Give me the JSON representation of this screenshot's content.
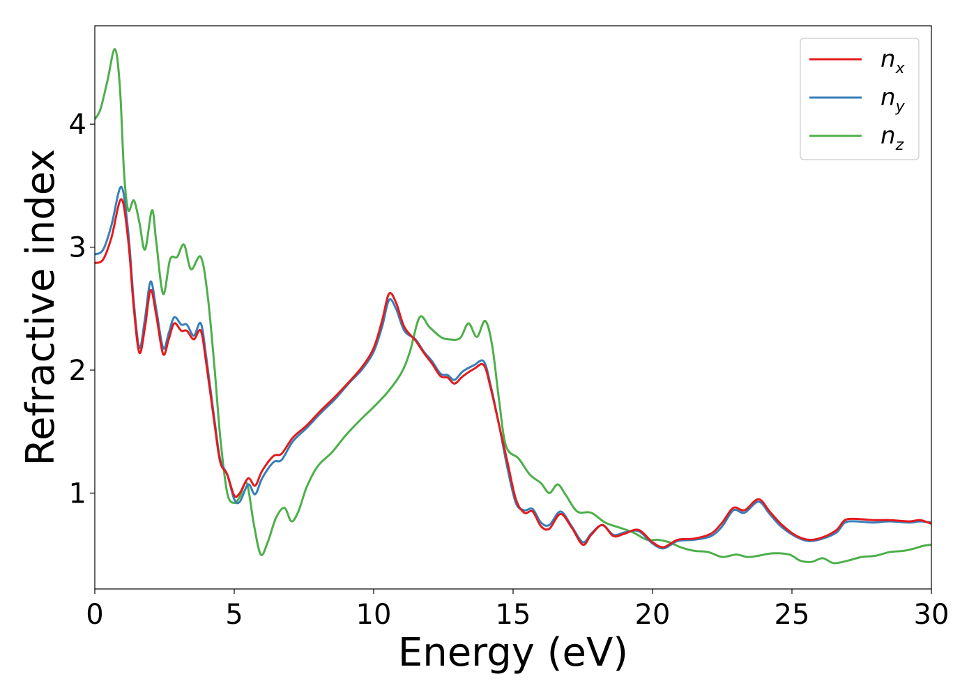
{
  "chart_data": {
    "type": "line",
    "xlabel": "Energy (eV)",
    "ylabel": "Refractive index",
    "xlim": [
      0,
      30
    ],
    "ylim": [
      0.22,
      4.8
    ],
    "x_ticks": [
      0,
      5,
      10,
      15,
      20,
      25,
      30
    ],
    "y_ticks": [
      1,
      2,
      3,
      4
    ],
    "legend_position": "top-right",
    "grid": false,
    "series": [
      {
        "name": "n_x",
        "label_main": "n",
        "label_sub": "x",
        "color": "#e41a1c",
        "points": [
          [
            0,
            2.87
          ],
          [
            0.3,
            2.9
          ],
          [
            0.6,
            3.08
          ],
          [
            0.95,
            3.39
          ],
          [
            1.2,
            3.05
          ],
          [
            1.4,
            2.5
          ],
          [
            1.6,
            2.14
          ],
          [
            1.8,
            2.35
          ],
          [
            2.0,
            2.65
          ],
          [
            2.2,
            2.45
          ],
          [
            2.45,
            2.13
          ],
          [
            2.65,
            2.25
          ],
          [
            2.85,
            2.38
          ],
          [
            3.1,
            2.32
          ],
          [
            3.3,
            2.32
          ],
          [
            3.55,
            2.25
          ],
          [
            3.8,
            2.32
          ],
          [
            4.0,
            2.05
          ],
          [
            4.3,
            1.55
          ],
          [
            4.5,
            1.25
          ],
          [
            4.75,
            1.15
          ],
          [
            5.0,
            0.98
          ],
          [
            5.2,
            1.0
          ],
          [
            5.5,
            1.12
          ],
          [
            5.75,
            1.06
          ],
          [
            6.0,
            1.18
          ],
          [
            6.4,
            1.3
          ],
          [
            6.7,
            1.32
          ],
          [
            7.1,
            1.45
          ],
          [
            7.6,
            1.55
          ],
          [
            8.1,
            1.67
          ],
          [
            8.6,
            1.78
          ],
          [
            9.1,
            1.9
          ],
          [
            9.6,
            2.03
          ],
          [
            10.0,
            2.18
          ],
          [
            10.3,
            2.4
          ],
          [
            10.55,
            2.62
          ],
          [
            10.8,
            2.55
          ],
          [
            11.1,
            2.35
          ],
          [
            11.5,
            2.24
          ],
          [
            11.8,
            2.14
          ],
          [
            12.1,
            2.05
          ],
          [
            12.4,
            1.95
          ],
          [
            12.65,
            1.94
          ],
          [
            12.9,
            1.89
          ],
          [
            13.2,
            1.95
          ],
          [
            13.6,
            2.01
          ],
          [
            13.95,
            2.04
          ],
          [
            14.2,
            1.85
          ],
          [
            14.5,
            1.55
          ],
          [
            14.8,
            1.25
          ],
          [
            15.1,
            0.95
          ],
          [
            15.4,
            0.84
          ],
          [
            15.7,
            0.85
          ],
          [
            16.0,
            0.73
          ],
          [
            16.3,
            0.71
          ],
          [
            16.7,
            0.83
          ],
          [
            17.1,
            0.72
          ],
          [
            17.5,
            0.58
          ],
          [
            17.8,
            0.66
          ],
          [
            18.2,
            0.74
          ],
          [
            18.6,
            0.65
          ],
          [
            19.0,
            0.67
          ],
          [
            19.5,
            0.7
          ],
          [
            20.0,
            0.6
          ],
          [
            20.4,
            0.56
          ],
          [
            20.9,
            0.62
          ],
          [
            21.5,
            0.63
          ],
          [
            22.1,
            0.67
          ],
          [
            22.5,
            0.76
          ],
          [
            22.9,
            0.88
          ],
          [
            23.3,
            0.86
          ],
          [
            23.8,
            0.95
          ],
          [
            24.2,
            0.85
          ],
          [
            24.6,
            0.75
          ],
          [
            25.1,
            0.66
          ],
          [
            25.6,
            0.62
          ],
          [
            26.1,
            0.64
          ],
          [
            26.6,
            0.7
          ],
          [
            26.9,
            0.78
          ],
          [
            27.3,
            0.79
          ],
          [
            27.9,
            0.78
          ],
          [
            28.5,
            0.78
          ],
          [
            29.2,
            0.77
          ],
          [
            29.6,
            0.78
          ],
          [
            30.0,
            0.75
          ]
        ]
      },
      {
        "name": "n_y",
        "label_main": "n",
        "label_sub": "y",
        "color": "#377eb8",
        "points": [
          [
            0,
            2.94
          ],
          [
            0.3,
            2.98
          ],
          [
            0.6,
            3.18
          ],
          [
            0.95,
            3.49
          ],
          [
            1.2,
            3.12
          ],
          [
            1.4,
            2.55
          ],
          [
            1.6,
            2.18
          ],
          [
            1.8,
            2.42
          ],
          [
            2.0,
            2.72
          ],
          [
            2.2,
            2.5
          ],
          [
            2.45,
            2.18
          ],
          [
            2.65,
            2.3
          ],
          [
            2.85,
            2.43
          ],
          [
            3.1,
            2.37
          ],
          [
            3.3,
            2.37
          ],
          [
            3.55,
            2.28
          ],
          [
            3.8,
            2.38
          ],
          [
            4.0,
            2.1
          ],
          [
            4.3,
            1.58
          ],
          [
            4.5,
            1.27
          ],
          [
            4.75,
            1.15
          ],
          [
            5.0,
            0.95
          ],
          [
            5.2,
            0.93
          ],
          [
            5.5,
            1.07
          ],
          [
            5.75,
            0.99
          ],
          [
            6.0,
            1.12
          ],
          [
            6.4,
            1.25
          ],
          [
            6.7,
            1.27
          ],
          [
            7.1,
            1.42
          ],
          [
            7.6,
            1.53
          ],
          [
            8.1,
            1.65
          ],
          [
            8.6,
            1.76
          ],
          [
            9.1,
            1.89
          ],
          [
            9.6,
            2.01
          ],
          [
            10.0,
            2.15
          ],
          [
            10.3,
            2.35
          ],
          [
            10.55,
            2.57
          ],
          [
            10.8,
            2.5
          ],
          [
            11.1,
            2.32
          ],
          [
            11.5,
            2.25
          ],
          [
            11.8,
            2.15
          ],
          [
            12.1,
            2.07
          ],
          [
            12.4,
            1.97
          ],
          [
            12.65,
            1.96
          ],
          [
            12.9,
            1.92
          ],
          [
            13.2,
            1.99
          ],
          [
            13.6,
            2.04
          ],
          [
            13.95,
            2.07
          ],
          [
            14.2,
            1.87
          ],
          [
            14.5,
            1.55
          ],
          [
            14.8,
            1.2
          ],
          [
            15.1,
            0.92
          ],
          [
            15.4,
            0.86
          ],
          [
            15.7,
            0.87
          ],
          [
            16.0,
            0.76
          ],
          [
            16.3,
            0.74
          ],
          [
            16.7,
            0.85
          ],
          [
            17.1,
            0.73
          ],
          [
            17.5,
            0.6
          ],
          [
            17.8,
            0.67
          ],
          [
            18.2,
            0.74
          ],
          [
            18.6,
            0.66
          ],
          [
            19.0,
            0.68
          ],
          [
            19.5,
            0.69
          ],
          [
            20.0,
            0.59
          ],
          [
            20.4,
            0.55
          ],
          [
            20.9,
            0.61
          ],
          [
            21.5,
            0.62
          ],
          [
            22.1,
            0.65
          ],
          [
            22.5,
            0.73
          ],
          [
            22.9,
            0.86
          ],
          [
            23.3,
            0.84
          ],
          [
            23.8,
            0.93
          ],
          [
            24.2,
            0.83
          ],
          [
            24.6,
            0.73
          ],
          [
            25.1,
            0.65
          ],
          [
            25.6,
            0.61
          ],
          [
            26.1,
            0.63
          ],
          [
            26.6,
            0.68
          ],
          [
            26.9,
            0.76
          ],
          [
            27.3,
            0.77
          ],
          [
            27.9,
            0.76
          ],
          [
            28.5,
            0.77
          ],
          [
            29.2,
            0.76
          ],
          [
            29.6,
            0.77
          ],
          [
            30.0,
            0.76
          ]
        ]
      },
      {
        "name": "n_z",
        "label_main": "n",
        "label_sub": "z",
        "color": "#4daf4a",
        "points": [
          [
            0,
            4.04
          ],
          [
            0.2,
            4.12
          ],
          [
            0.45,
            4.35
          ],
          [
            0.72,
            4.61
          ],
          [
            0.9,
            4.3
          ],
          [
            1.05,
            3.6
          ],
          [
            1.2,
            3.3
          ],
          [
            1.4,
            3.38
          ],
          [
            1.6,
            3.2
          ],
          [
            1.8,
            2.98
          ],
          [
            2.05,
            3.3
          ],
          [
            2.2,
            3.05
          ],
          [
            2.45,
            2.62
          ],
          [
            2.7,
            2.9
          ],
          [
            2.95,
            2.92
          ],
          [
            3.2,
            3.02
          ],
          [
            3.45,
            2.82
          ],
          [
            3.8,
            2.92
          ],
          [
            4.05,
            2.6
          ],
          [
            4.3,
            2.0
          ],
          [
            4.5,
            1.45
          ],
          [
            4.75,
            1.0
          ],
          [
            5.0,
            0.92
          ],
          [
            5.2,
            0.97
          ],
          [
            5.45,
            1.08
          ],
          [
            5.7,
            0.75
          ],
          [
            5.95,
            0.5
          ],
          [
            6.2,
            0.6
          ],
          [
            6.5,
            0.8
          ],
          [
            6.8,
            0.88
          ],
          [
            7.05,
            0.77
          ],
          [
            7.3,
            0.85
          ],
          [
            7.6,
            1.05
          ],
          [
            8.0,
            1.22
          ],
          [
            8.5,
            1.33
          ],
          [
            9.0,
            1.47
          ],
          [
            9.5,
            1.59
          ],
          [
            10.0,
            1.7
          ],
          [
            10.5,
            1.82
          ],
          [
            11.0,
            1.98
          ],
          [
            11.3,
            2.15
          ],
          [
            11.65,
            2.43
          ],
          [
            12.0,
            2.35
          ],
          [
            12.4,
            2.27
          ],
          [
            12.7,
            2.25
          ],
          [
            13.1,
            2.26
          ],
          [
            13.4,
            2.38
          ],
          [
            13.7,
            2.27
          ],
          [
            14.0,
            2.4
          ],
          [
            14.25,
            2.2
          ],
          [
            14.5,
            1.75
          ],
          [
            14.75,
            1.38
          ],
          [
            15.2,
            1.28
          ],
          [
            15.6,
            1.15
          ],
          [
            16.0,
            1.08
          ],
          [
            16.3,
            1.0
          ],
          [
            16.6,
            1.07
          ],
          [
            16.9,
            0.98
          ],
          [
            17.3,
            0.85
          ],
          [
            17.8,
            0.84
          ],
          [
            18.3,
            0.76
          ],
          [
            18.8,
            0.72
          ],
          [
            19.3,
            0.68
          ],
          [
            19.8,
            0.62
          ],
          [
            20.2,
            0.62
          ],
          [
            20.6,
            0.6
          ],
          [
            21.0,
            0.56
          ],
          [
            21.5,
            0.53
          ],
          [
            22.0,
            0.52
          ],
          [
            22.5,
            0.48
          ],
          [
            23.0,
            0.5
          ],
          [
            23.4,
            0.48
          ],
          [
            23.8,
            0.49
          ],
          [
            24.3,
            0.51
          ],
          [
            24.9,
            0.5
          ],
          [
            25.3,
            0.45
          ],
          [
            25.7,
            0.44
          ],
          [
            26.1,
            0.47
          ],
          [
            26.5,
            0.43
          ],
          [
            27.0,
            0.45
          ],
          [
            27.5,
            0.48
          ],
          [
            28.0,
            0.49
          ],
          [
            28.5,
            0.52
          ],
          [
            29.0,
            0.53
          ],
          [
            29.4,
            0.55
          ],
          [
            29.7,
            0.57
          ],
          [
            30.0,
            0.58
          ]
        ]
      }
    ]
  }
}
